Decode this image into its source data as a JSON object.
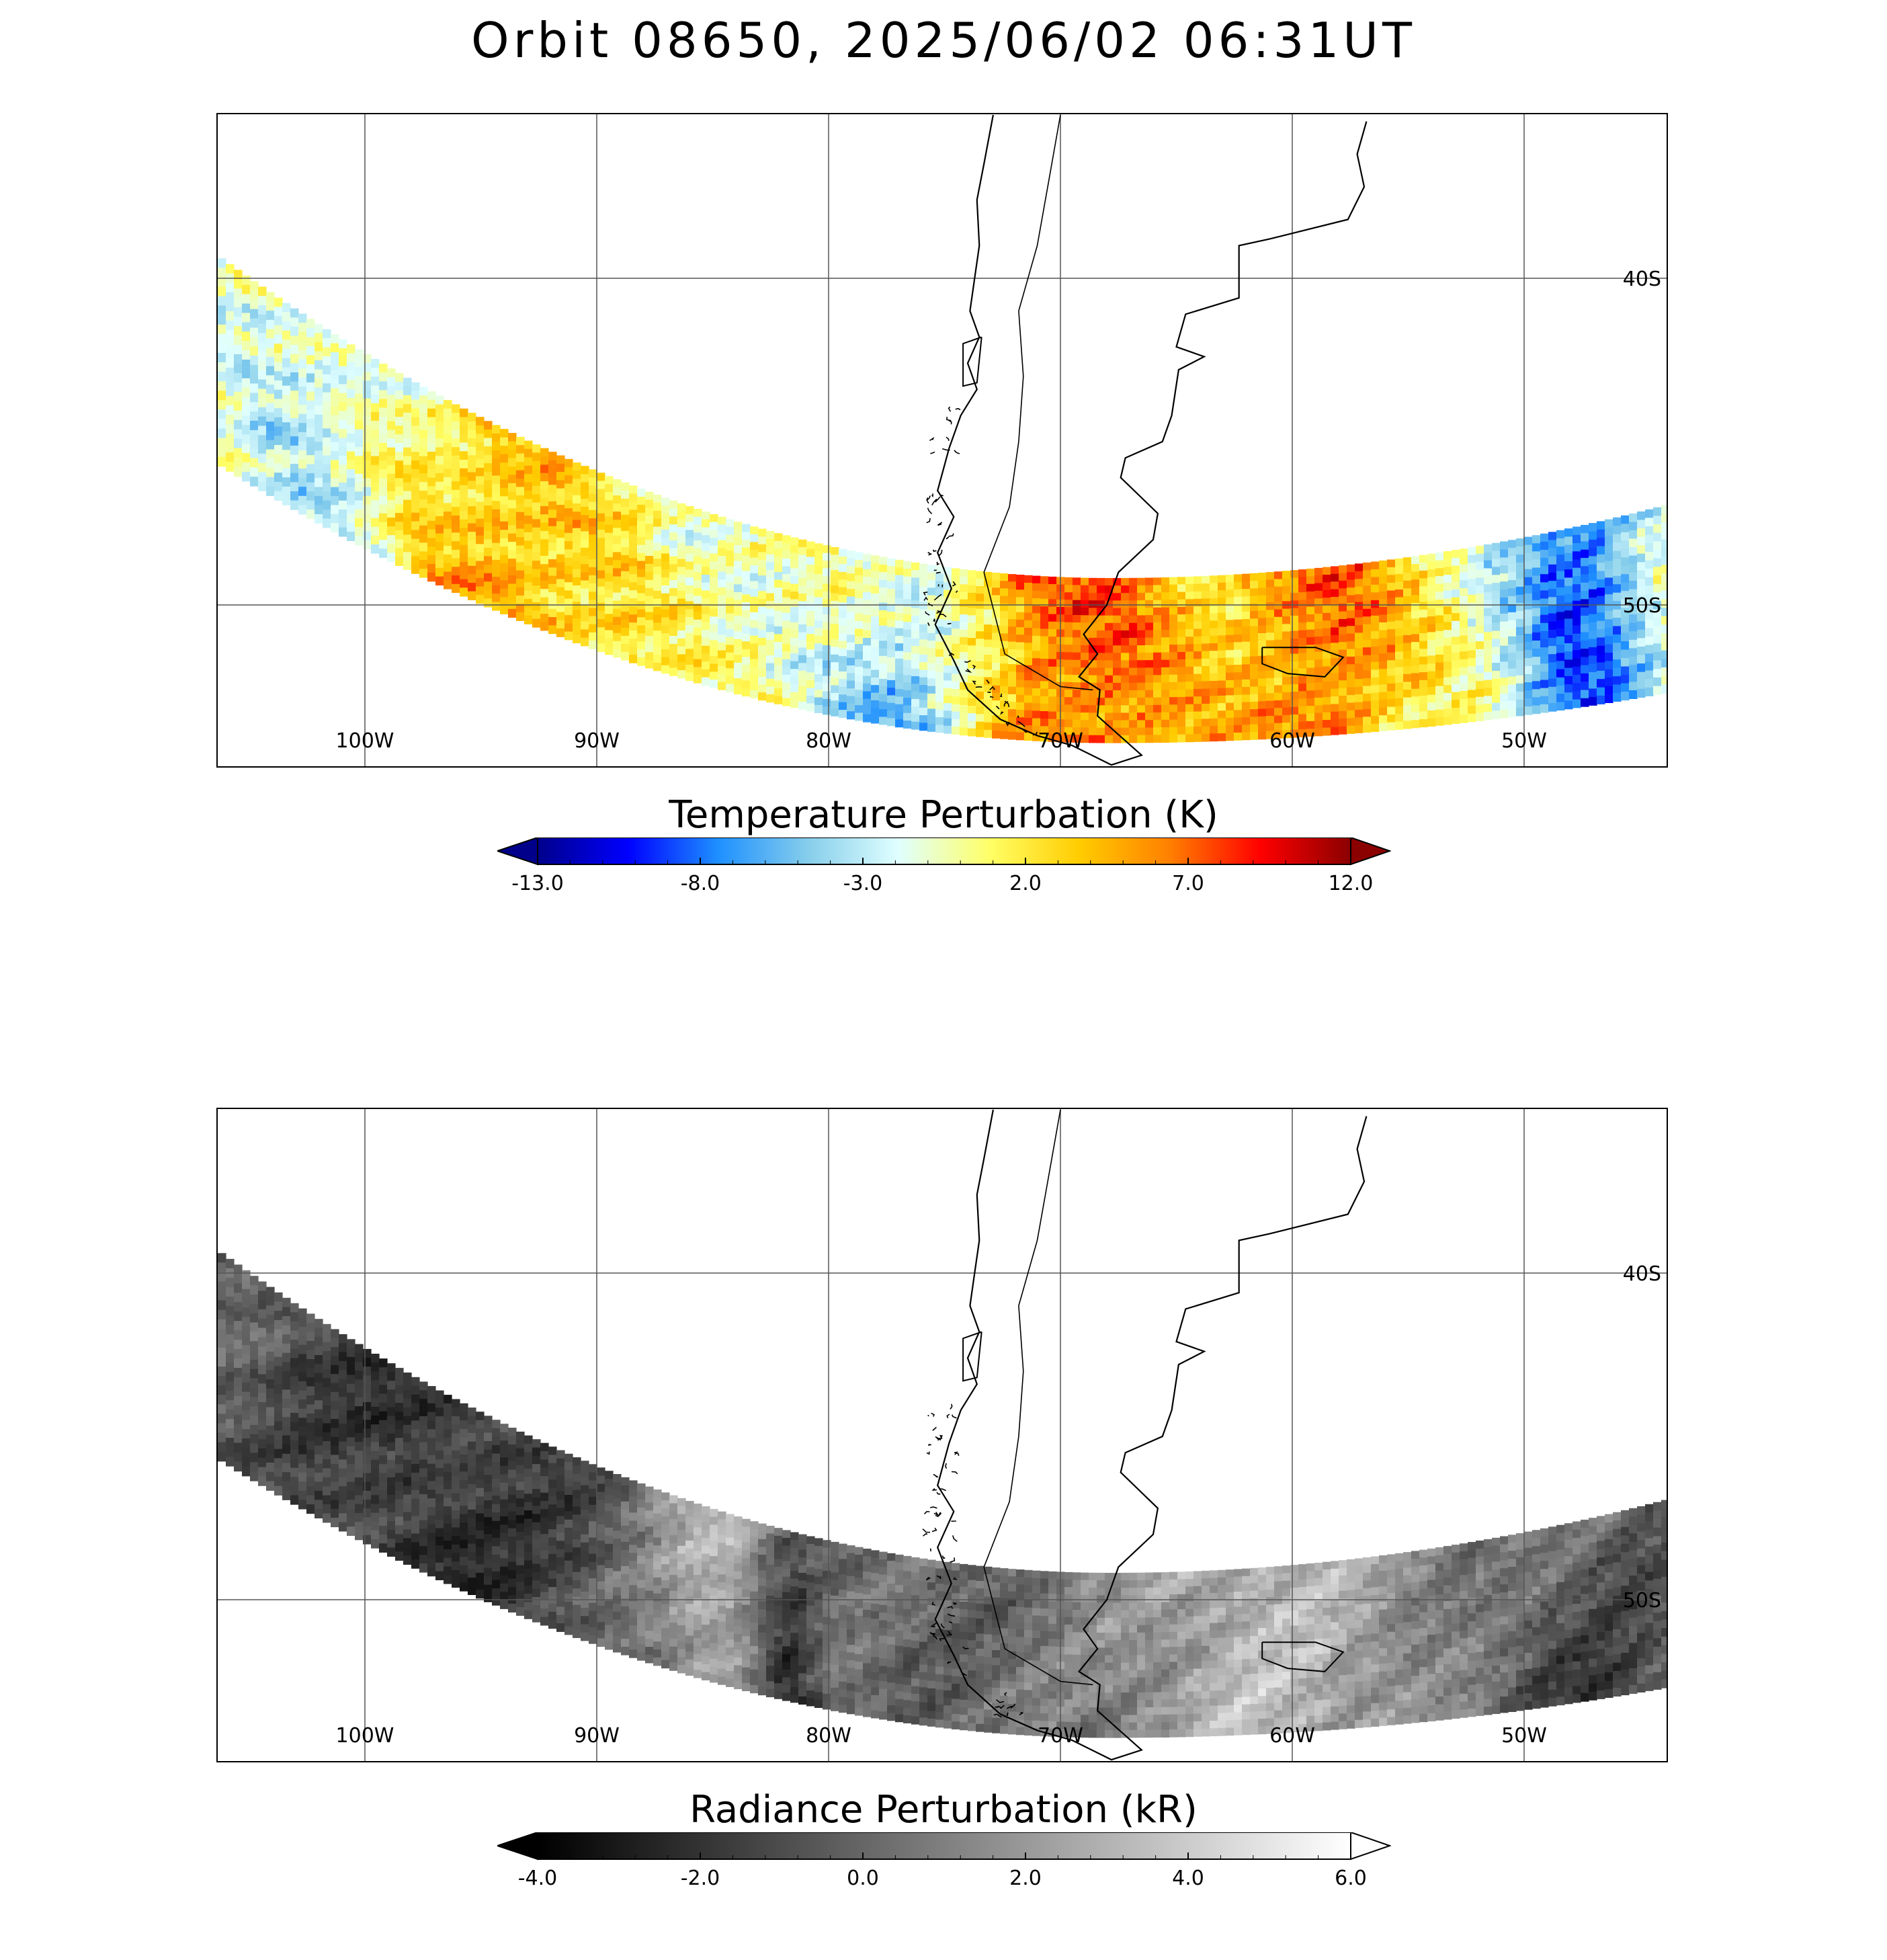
{
  "title": "Orbit 08650, 2025/06/02 06:31UT",
  "chart_data": [
    {
      "type": "heatmap",
      "title": "Temperature Perturbation (K)",
      "colorbar": {
        "min": -13.0,
        "max": 12.0,
        "ticks": [
          "-13.0",
          "-8.0",
          "-3.0",
          "2.0",
          "7.0",
          "12.0"
        ],
        "tick_values": [
          -13,
          -8,
          -3,
          2,
          7,
          12
        ],
        "colors": [
          "#00008b",
          "#0000ff",
          "#1e90ff",
          "#87ceeb",
          "#e0ffff",
          "#ffff66",
          "#ffcc00",
          "#ff7f00",
          "#ff0000",
          "#8b0000"
        ],
        "extend": "both"
      },
      "lon_labels": [
        "100W",
        "90W",
        "80W",
        "70W",
        "60W",
        "50W"
      ],
      "lon_values": [
        -100,
        -90,
        -80,
        -70,
        -60,
        -50
      ],
      "lat_labels": [
        "40S",
        "50S"
      ],
      "lat_values": [
        -40,
        -50
      ],
      "grid": true,
      "coastlines": true
    },
    {
      "type": "heatmap",
      "title": "Radiance Perturbation (kR)",
      "colorbar": {
        "min": -4.0,
        "max": 6.0,
        "ticks": [
          "-4.0",
          "-2.0",
          "0.0",
          "2.0",
          "4.0",
          "6.0"
        ],
        "tick_values": [
          -4,
          -2,
          0,
          2,
          4,
          6
        ],
        "colors": [
          "#000000",
          "#ffffff"
        ],
        "extend": "both"
      },
      "lon_labels": [
        "100W",
        "90W",
        "80W",
        "70W",
        "60W",
        "50W"
      ],
      "lon_values": [
        -100,
        -90,
        -80,
        -70,
        -60,
        -50
      ],
      "lat_labels": [
        "40S",
        "50S"
      ],
      "lat_values": [
        -40,
        -50
      ],
      "grid": true,
      "coastlines": true
    }
  ]
}
